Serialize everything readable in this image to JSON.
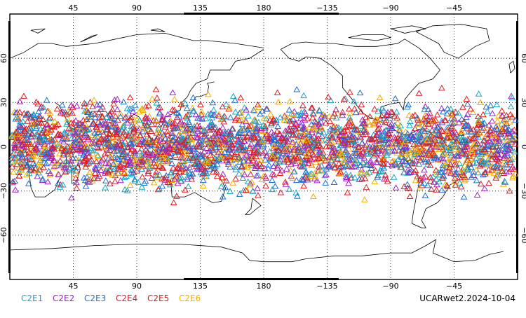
{
  "map": {
    "projection": "cylindrical-equidistant",
    "central_longitude": 180,
    "lon_ticks_top": [
      "45",
      "90",
      "135",
      "180",
      "−135",
      "−90",
      "−45"
    ],
    "lon_ticks_bottom": [
      "45",
      "90",
      "135",
      "180",
      "−135",
      "−90",
      "−45"
    ],
    "lat_ticks_left": [
      "60",
      "30",
      "0",
      "−30",
      "−60"
    ],
    "lat_ticks_right": [
      "60",
      "30",
      "0",
      "−30",
      "−60"
    ],
    "grid": "dotted",
    "coastline_color": "#000000"
  },
  "legend": [
    {
      "label": "C2E1",
      "color": "#12a8c8"
    },
    {
      "label": "C2E2",
      "color": "#a020c8"
    },
    {
      "label": "C2E3",
      "color": "#1f6fd6"
    },
    {
      "label": "C2E4",
      "color": "#d0202c"
    },
    {
      "label": "C2E5",
      "color": "#e81818"
    },
    {
      "label": "C2E6",
      "color": "#f0b000"
    }
  ],
  "footer": {
    "product_label": "UCARwet2.2024-10-04"
  },
  "observations": {
    "marker": "open-triangle",
    "lat_range": [
      -40,
      42
    ],
    "approx_count": 3200
  }
}
